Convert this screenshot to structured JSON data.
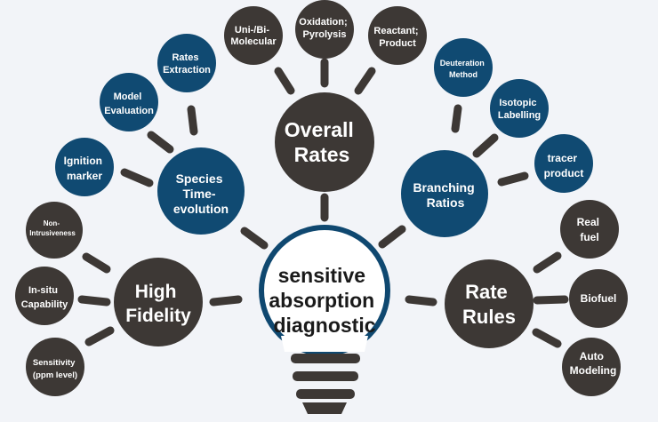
{
  "colors": {
    "background": "#f2f4f8",
    "dark": "#3d3835",
    "blue": "#104a72",
    "bulb_ring": "#0f4870",
    "text_light": "#ffffff",
    "text_dark": "#1a1a1a"
  },
  "bulb": {
    "lines": [
      "sensitive",
      "absorption",
      "diagnostic"
    ]
  },
  "hubs": {
    "overall_rates": {
      "lines": [
        "Overall",
        "Rates"
      ]
    },
    "species_time_evolution": {
      "lines": [
        "Species",
        "Time-",
        "evolution"
      ]
    },
    "branching_ratios": {
      "lines": [
        "Branching",
        "Ratios"
      ]
    },
    "high_fidelity": {
      "lines": [
        "High",
        "Fidelity"
      ]
    },
    "rate_rules": {
      "lines": [
        "Rate",
        "Rules"
      ]
    }
  },
  "leaves": {
    "uni_bi_molecular": {
      "lines": [
        "Uni-/Bi-",
        "Molecular"
      ]
    },
    "oxidation_pyrolysis": {
      "lines": [
        "Oxidation;",
        "Pyrolysis"
      ]
    },
    "reactant_product": {
      "lines": [
        "Reactant;",
        "Product"
      ]
    },
    "rates_extraction": {
      "lines": [
        "Rates",
        "Extraction"
      ]
    },
    "model_evaluation": {
      "lines": [
        "Model",
        "Evaluation"
      ]
    },
    "ignition_marker": {
      "lines": [
        "Ignition",
        "marker"
      ]
    },
    "deuteration_method": {
      "lines": [
        "Deuteration",
        "Method"
      ]
    },
    "isotopic_labelling": {
      "lines": [
        "Isotopic",
        "Labelling"
      ]
    },
    "tracer_product": {
      "lines": [
        "tracer",
        "product"
      ]
    },
    "non_intrusiveness": {
      "lines": [
        "Non-",
        "Intrusiveness"
      ]
    },
    "in_situ_capability": {
      "lines": [
        "In-situ",
        "Capability"
      ]
    },
    "sensitivity": {
      "lines": [
        "Sensitivity",
        "(ppm level)"
      ]
    },
    "real_fuel": {
      "lines": [
        "Real",
        "fuel"
      ]
    },
    "biofuel": {
      "lines": [
        "Biofuel"
      ]
    },
    "auto_modeling": {
      "lines": [
        "Auto",
        "Modeling"
      ]
    }
  }
}
